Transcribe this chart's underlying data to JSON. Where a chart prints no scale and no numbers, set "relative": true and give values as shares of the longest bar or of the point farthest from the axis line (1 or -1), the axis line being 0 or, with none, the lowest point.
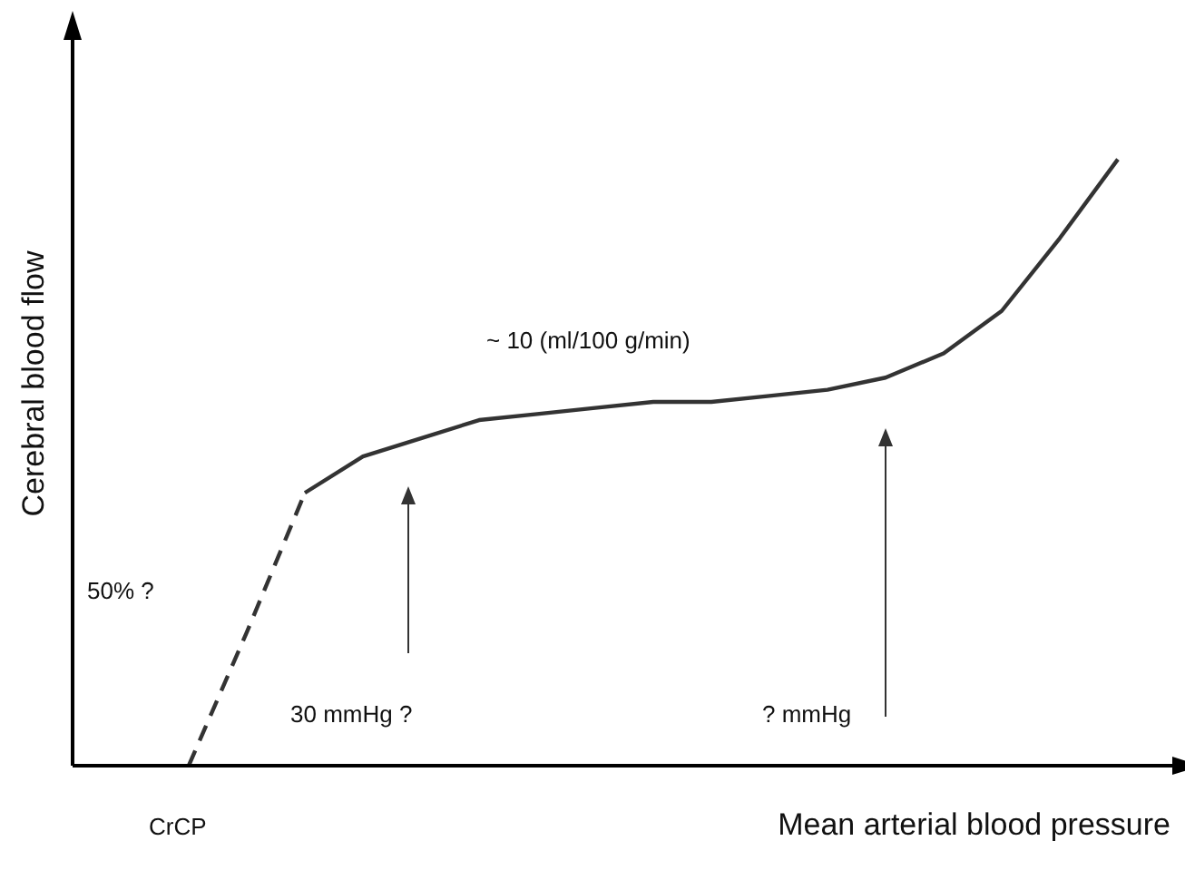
{
  "chart_data": {
    "type": "line",
    "relative": true,
    "xlabel": "Mean arterial blood pressure",
    "ylabel": "Cerebral blood flow",
    "categories": [
      null,
      null,
      null,
      null,
      null,
      null,
      null,
      null,
      null,
      null,
      null,
      null,
      null,
      null,
      null,
      null,
      null,
      null,
      null
    ],
    "marker": "none",
    "series": [
      {
        "color": "#333333",
        "line_style": "dashed",
        "values": [
          null,
          null,
          0,
          0.22,
          0.45,
          null,
          null,
          null,
          null,
          null,
          null,
          null,
          null,
          null,
          null,
          null,
          null,
          null,
          null
        ]
      },
      {
        "color": "#333333",
        "line_style": "solid",
        "values": [
          null,
          null,
          null,
          null,
          0.45,
          0.51,
          0.54,
          0.57,
          0.58,
          0.59,
          0.6,
          0.6,
          0.61,
          0.62,
          0.64,
          0.68,
          0.75,
          0.87,
          1
        ]
      }
    ],
    "annotations": [
      "~ 10 (ml/100 g/min)",
      "50% ?",
      "30 mmHg ?",
      "? mmHg",
      "CrCP"
    ]
  }
}
